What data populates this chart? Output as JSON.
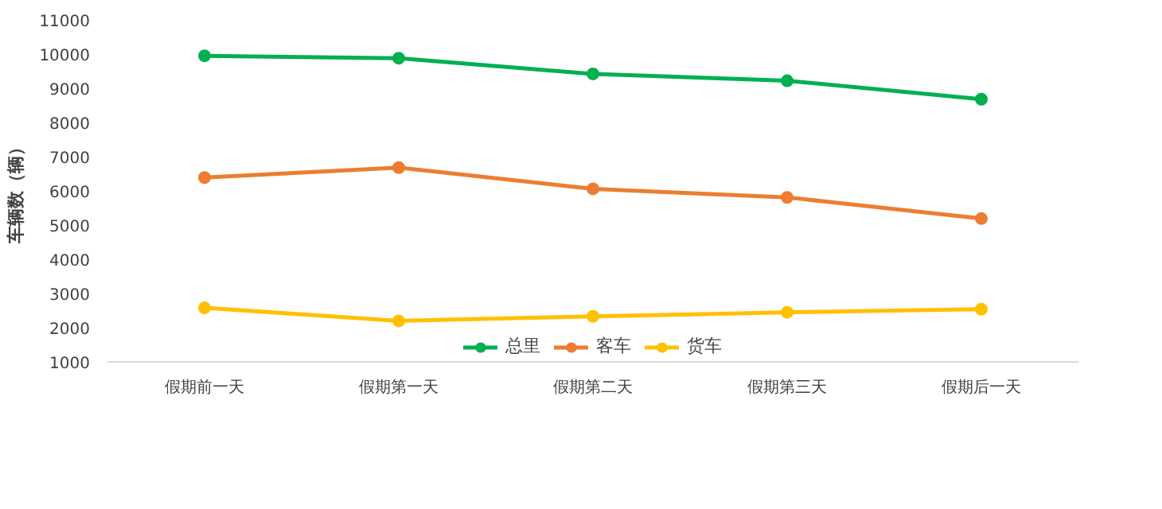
{
  "chart_data": {
    "type": "line",
    "ylabel": "车辆数（辆）",
    "categories": [
      "假期前一天",
      "假期第一天",
      "假期第二天",
      "假期第三天",
      "假期后一天"
    ],
    "series": [
      {
        "name": "总里",
        "color": "#00b050",
        "values": [
          9950,
          9880,
          9420,
          9220,
          8680
        ]
      },
      {
        "name": "客车",
        "color": "#ed7d31",
        "values": [
          6390,
          6680,
          6060,
          5810,
          5190
        ]
      },
      {
        "name": "货车",
        "color": "#ffc000",
        "values": [
          2580,
          2200,
          2330,
          2450,
          2540
        ]
      }
    ],
    "ylim": [
      1000,
      11000
    ],
    "yticks": [
      1000,
      2000,
      3000,
      4000,
      5000,
      6000,
      7000,
      8000,
      9000,
      10000,
      11000
    ],
    "grid": false,
    "legend": "bottom",
    "marker": "circle",
    "line_style": "solid"
  }
}
